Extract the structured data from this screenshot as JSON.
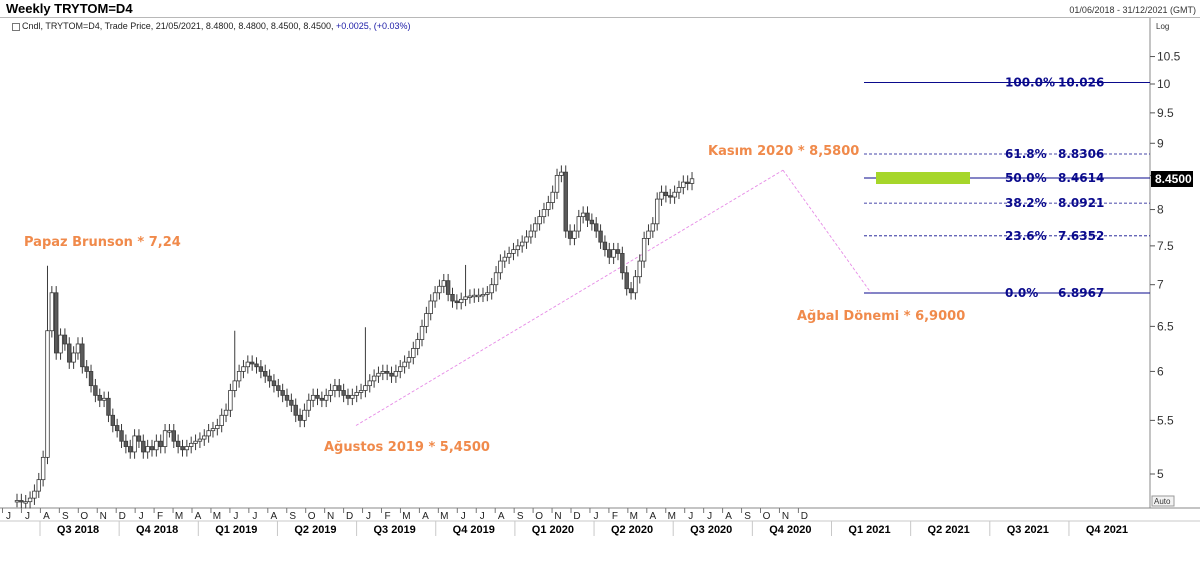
{
  "header": {
    "title": "Weekly TRYTOM=D4",
    "date_range": "01/06/2018 - 31/12/2021 (GMT)"
  },
  "legend": {
    "text": "Cndl, TRYTOM=D4, Trade Price, 21/05/2021, 8.4800, 8.4800, 8.4500, 8.4500,",
    "change": "+0.0025, (+0.03%)"
  },
  "axis": {
    "scale_label": "Log",
    "auto_label": "Auto",
    "y_ticks": [
      "10.5",
      "10",
      "9.5",
      "9",
      "8.5",
      "8",
      "7.5",
      "7",
      "6.5",
      "6",
      "5.5",
      "5"
    ],
    "last_price": "8.4500",
    "months": [
      "J",
      "J",
      "A",
      "S",
      "O",
      "N",
      "D",
      "J",
      "F",
      "M",
      "A",
      "M",
      "J",
      "J",
      "A",
      "S",
      "O",
      "N",
      "D",
      "J",
      "F",
      "M",
      "A",
      "M",
      "J",
      "J",
      "A",
      "S",
      "O",
      "N",
      "D",
      "J",
      "F",
      "M",
      "A",
      "M",
      "J",
      "J",
      "A",
      "S",
      "O",
      "N",
      "D"
    ],
    "quarters": [
      "Q3 2018",
      "Q4 2018",
      "Q1 2019",
      "Q2 2019",
      "Q3 2019",
      "Q4 2019",
      "Q1 2020",
      "Q2 2020",
      "Q3 2020",
      "Q4 2020",
      "Q1 2021",
      "Q2 2021",
      "Q3 2021",
      "Q4 2021"
    ]
  },
  "annotations": {
    "papaz": "Papaz Brunson * 7,24",
    "agustos": "Ağustos 2019 * 5,4500",
    "kasim": "Kasım 2020 * 8,5800",
    "agbal": "Ağbal Dönemi * 6,9000"
  },
  "fibonacci": [
    {
      "pct": "100.0%",
      "value": "10.026"
    },
    {
      "pct": "61.8%",
      "value": "8.8306"
    },
    {
      "pct": "50.0%",
      "value": "8.4614"
    },
    {
      "pct": "38.2%",
      "value": "8.0921"
    },
    {
      "pct": "23.6%",
      "value": "7.6352"
    },
    {
      "pct": "0.0%",
      "value": "6.8967"
    }
  ],
  "colors": {
    "bull_candle": "#ffffff",
    "bear_candle": "#5a5a5a",
    "candle_outline": "#3a3a3a",
    "annotation": "#f08a4b",
    "fibonacci": "#0a0a8c",
    "trendline": "#e68ae6",
    "highlight_box": "#a6d62a"
  },
  "chart_data": {
    "type": "candlestick",
    "title": "Weekly TRYTOM=D4",
    "x_range": [
      "2018-06-01",
      "2021-12-31"
    ],
    "ylim": [
      4.7,
      11.0
    ],
    "y_scale": "log",
    "grid": false,
    "weekly_close_estimate": [
      4.77,
      4.76,
      4.76,
      4.79,
      4.85,
      4.95,
      5.15,
      6.45,
      6.9,
      6.2,
      6.4,
      6.3,
      6.1,
      6.2,
      6.3,
      6.05,
      6.0,
      5.85,
      5.75,
      5.7,
      5.72,
      5.55,
      5.45,
      5.4,
      5.3,
      5.25,
      5.2,
      5.35,
      5.3,
      5.2,
      5.25,
      5.22,
      5.3,
      5.25,
      5.4,
      5.4,
      5.3,
      5.25,
      5.22,
      5.25,
      5.28,
      5.3,
      5.32,
      5.35,
      5.4,
      5.42,
      5.45,
      5.55,
      5.6,
      5.8,
      5.9,
      6.0,
      6.05,
      6.1,
      6.08,
      6.05,
      6.0,
      5.95,
      5.9,
      5.85,
      5.8,
      5.75,
      5.7,
      5.65,
      5.55,
      5.5,
      5.6,
      5.7,
      5.75,
      5.72,
      5.7,
      5.75,
      5.8,
      5.85,
      5.8,
      5.75,
      5.72,
      5.75,
      5.78,
      5.8,
      5.85,
      5.9,
      5.95,
      5.98,
      6.0,
      5.98,
      5.95,
      6.0,
      6.05,
      6.1,
      6.15,
      6.25,
      6.35,
      6.5,
      6.65,
      6.8,
      6.9,
      6.98,
      7.05,
      6.88,
      6.8,
      6.78,
      6.82,
      6.85,
      6.86,
      6.87,
      6.87,
      6.88,
      6.9,
      7.0,
      7.15,
      7.3,
      7.35,
      7.4,
      7.45,
      7.5,
      7.55,
      7.62,
      7.7,
      7.8,
      7.9,
      8.0,
      8.1,
      8.25,
      8.5,
      8.55,
      7.7,
      7.6,
      7.7,
      7.9,
      7.95,
      7.85,
      7.8,
      7.7,
      7.55,
      7.45,
      7.35,
      7.45,
      7.4,
      7.15,
      6.95,
      6.9,
      7.1,
      7.3,
      7.6,
      7.7,
      7.8,
      8.15,
      8.25,
      8.2,
      8.18,
      8.25,
      8.32,
      8.4,
      8.38,
      8.45
    ],
    "annotations": [
      {
        "label": "Papaz Brunson * 7,24",
        "value": 7.24
      },
      {
        "label": "Ağustos 2019 * 5,4500",
        "value": 5.45
      },
      {
        "label": "Kasım 2020 * 8,5800",
        "value": 8.58
      },
      {
        "label": "Ağbal Dönemi * 6,9000",
        "value": 6.9
      }
    ],
    "fibonacci_levels": [
      {
        "level": "100.0%",
        "price": 10.026
      },
      {
        "level": "61.8%",
        "price": 8.8306
      },
      {
        "level": "50.0%",
        "price": 8.4614
      },
      {
        "level": "38.2%",
        "price": 8.0921
      },
      {
        "level": "23.6%",
        "price": 7.6352
      },
      {
        "level": "0.0%",
        "price": 6.8967
      }
    ],
    "trendlines": [
      {
        "from_price": 5.45,
        "from_date": "2019-08",
        "to_price": 8.58,
        "to_date": "2020-11"
      },
      {
        "from_price": 8.58,
        "from_date": "2020-11",
        "to_price": 6.9,
        "to_date": "2021-03"
      }
    ],
    "last_price": 8.45
  }
}
